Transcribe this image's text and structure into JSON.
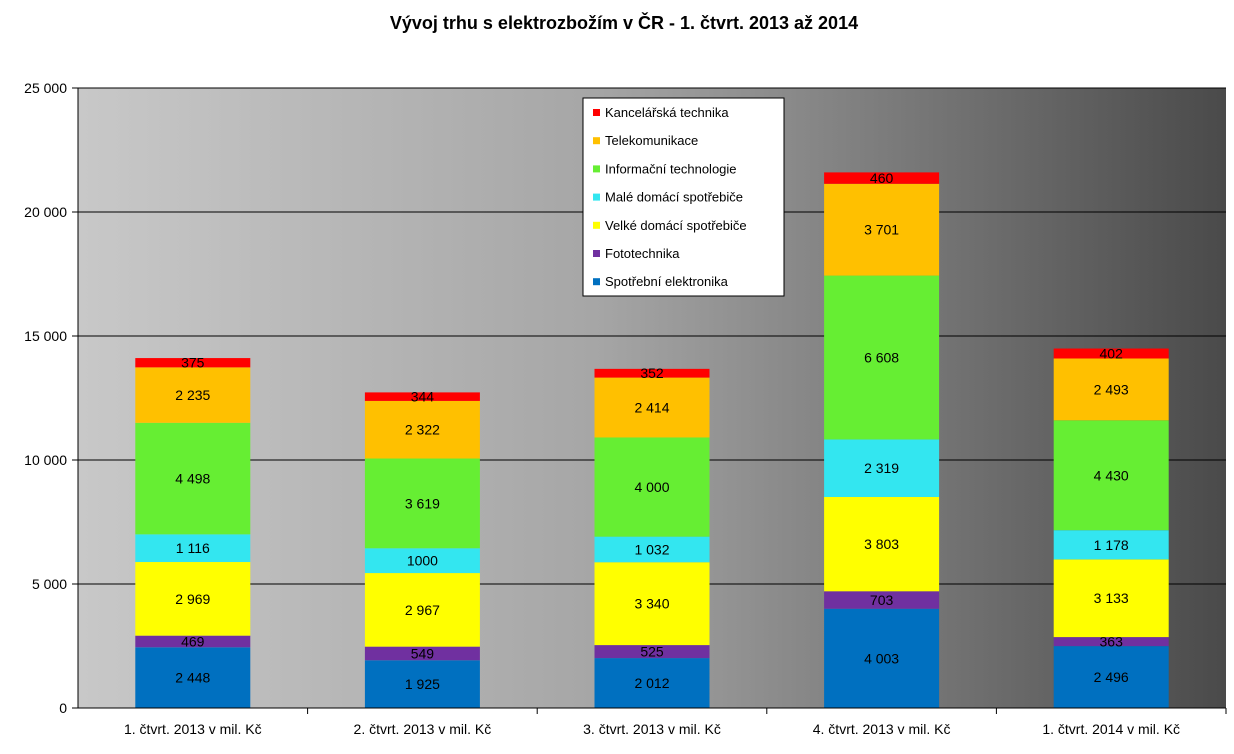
{
  "chart_data": {
    "type": "bar",
    "stacked": true,
    "title": "Vývoj trhu s elektrozbožím v ČR - 1. čtvrt. 2013 až 2014",
    "xlabel": "",
    "ylabel": "",
    "ylim": [
      0,
      25000
    ],
    "yticks": [
      0,
      5000,
      10000,
      15000,
      20000,
      25000
    ],
    "ytick_labels": [
      "0",
      "5 000",
      "10 000",
      "15 000",
      "20 000",
      "25 000"
    ],
    "grid": true,
    "legend_position": "top-center",
    "categories": [
      "1. čtvrt. 2013 v mil. Kč",
      "2. čtvrt. 2013 v mil. Kč",
      "3. čtvrt. 2013 v mil. Kč",
      "4. čtvrt. 2013 v mil. Kč",
      "1. čtvrt. 2014 v mil. Kč"
    ],
    "series": [
      {
        "name": "Spotřební elektronika",
        "color": "#0070C0",
        "values": [
          2448,
          1925,
          2012,
          4003,
          2496
        ],
        "labels": [
          "2 448",
          "1 925",
          "2 012",
          "4 003",
          "2 496"
        ]
      },
      {
        "name": "Fototechnika",
        "color": "#7030A0",
        "values": [
          469,
          549,
          525,
          703,
          363
        ],
        "labels": [
          "469",
          "549",
          "525",
          "703",
          "363"
        ]
      },
      {
        "name": "Velké domácí spotřebiče",
        "color": "#FFFF00",
        "values": [
          2969,
          2967,
          3340,
          3803,
          3133
        ],
        "labels": [
          "2 969",
          "2 967",
          "3 340",
          "3 803",
          "3 133"
        ]
      },
      {
        "name": "Malé domácí spotřebiče",
        "color": "#33E6F0",
        "values": [
          1116,
          1000,
          1032,
          2319,
          1178
        ],
        "labels": [
          "1 116",
          "1000",
          "1 032",
          "2 319",
          "1 178"
        ]
      },
      {
        "name": "Informační technologie",
        "color": "#66EE33",
        "values": [
          4498,
          3619,
          4000,
          6608,
          4430
        ],
        "labels": [
          "4 498",
          "3 619",
          "4 000",
          "6 608",
          "4 430"
        ]
      },
      {
        "name": "Telekomunikace",
        "color": "#FFC000",
        "values": [
          2235,
          2322,
          2414,
          3701,
          2493
        ],
        "labels": [
          "2 235",
          "2 322",
          "2 414",
          "3 701",
          "2 493"
        ]
      },
      {
        "name": "Kancelářská technika",
        "color": "#FF0000",
        "values": [
          375,
          344,
          352,
          460,
          402
        ],
        "labels": [
          "375",
          "344",
          "352",
          "460",
          "402"
        ]
      }
    ]
  }
}
